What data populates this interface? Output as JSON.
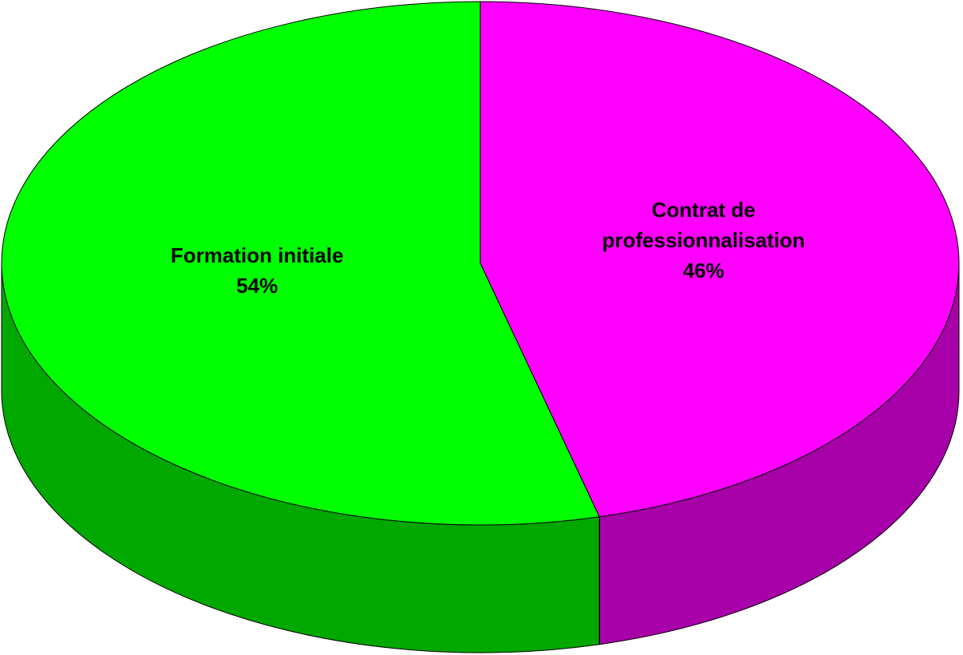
{
  "chart_data": {
    "type": "pie",
    "categories": [
      "Contrat de professionnalisation",
      "Formation initiale"
    ],
    "values": [
      46,
      54
    ],
    "value_labels": [
      "46%",
      "54%"
    ],
    "colors": [
      "#ff00ff",
      "#00ff00"
    ]
  }
}
